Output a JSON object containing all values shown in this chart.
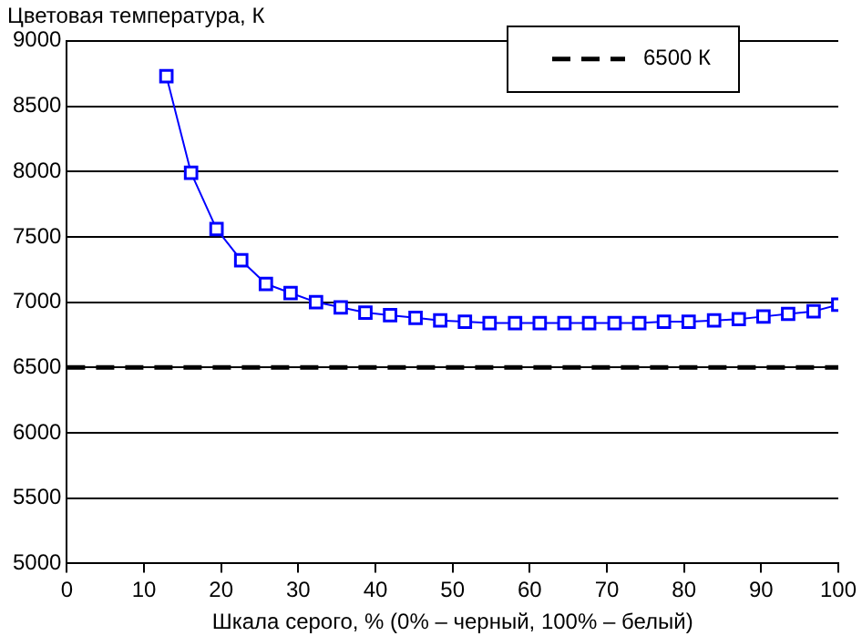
{
  "chart_data": {
    "type": "line",
    "ylabel": "Цветовая температура, К",
    "xlabel": "Шкала серого, % (0% – черный, 100% – белый)",
    "x": [
      12.9,
      16.1,
      19.4,
      22.6,
      25.8,
      29.0,
      32.3,
      35.5,
      38.7,
      41.9,
      45.2,
      48.4,
      51.6,
      54.8,
      58.1,
      61.3,
      64.5,
      67.7,
      71.0,
      74.2,
      77.4,
      80.6,
      83.9,
      87.1,
      90.3,
      93.5,
      96.8,
      100
    ],
    "series": [
      {
        "color": "#0000ff",
        "values": [
          8730,
          7990,
          7560,
          7320,
          7140,
          7070,
          7000,
          6960,
          6920,
          6900,
          6880,
          6860,
          6850,
          6840,
          6840,
          6840,
          6840,
          6840,
          6840,
          6840,
          6850,
          6850,
          6860,
          6870,
          6890,
          6910,
          6930,
          6980
        ]
      }
    ],
    "ref_lines": [
      {
        "axis": "y",
        "value": 6500,
        "label": "6500 К",
        "color": "#000000",
        "line_style": "dashed"
      }
    ],
    "xlim": [
      0,
      100
    ],
    "xticks": [
      0,
      10,
      20,
      30,
      40,
      50,
      60,
      70,
      80,
      90,
      100
    ],
    "ylim": [
      5000,
      9000
    ],
    "yticks": [
      5000,
      5500,
      6000,
      6500,
      7000,
      7500,
      8000,
      8500,
      9000
    ],
    "grid": "y",
    "legend": "top right",
    "marker": "square",
    "line_style": "solid"
  }
}
